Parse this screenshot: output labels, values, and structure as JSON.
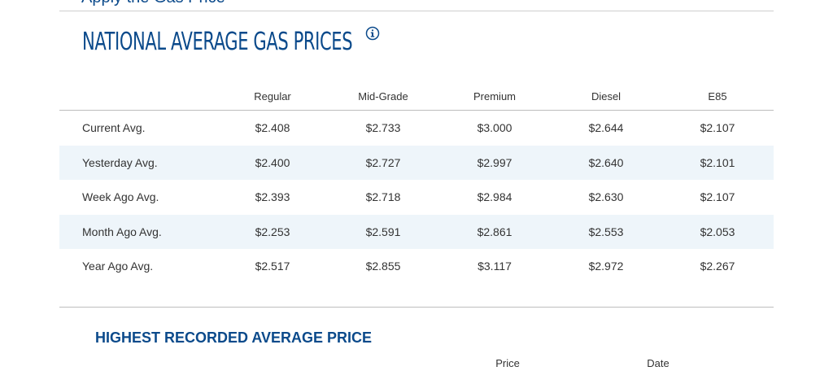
{
  "partial_header_text": "Apply the Gas Price",
  "section": {
    "title": "NATIONAL AVERAGE GAS PRICES",
    "info_icon": "info-icon"
  },
  "table": {
    "columns": [
      "Regular",
      "Mid-Grade",
      "Premium",
      "Diesel",
      "E85"
    ],
    "rows": [
      {
        "label": "Current Avg.",
        "values": [
          "$2.408",
          "$2.733",
          "$3.000",
          "$2.644",
          "$2.107"
        ]
      },
      {
        "label": "Yesterday Avg.",
        "values": [
          "$2.400",
          "$2.727",
          "$2.997",
          "$2.640",
          "$2.101"
        ]
      },
      {
        "label": "Week Ago Avg.",
        "values": [
          "$2.393",
          "$2.718",
          "$2.984",
          "$2.630",
          "$2.107"
        ]
      },
      {
        "label": "Month Ago Avg.",
        "values": [
          "$2.253",
          "$2.591",
          "$2.861",
          "$2.553",
          "$2.053"
        ]
      },
      {
        "label": "Year Ago Avg.",
        "values": [
          "$2.517",
          "$2.855",
          "$3.117",
          "$2.972",
          "$2.267"
        ]
      }
    ]
  },
  "highest": {
    "title": "HIGHEST RECORDED AVERAGE PRICE",
    "columns": [
      "Price",
      "Date"
    ]
  },
  "colors": {
    "brand_blue": "#0b4a8b",
    "row_alt": "#eef5fa"
  }
}
